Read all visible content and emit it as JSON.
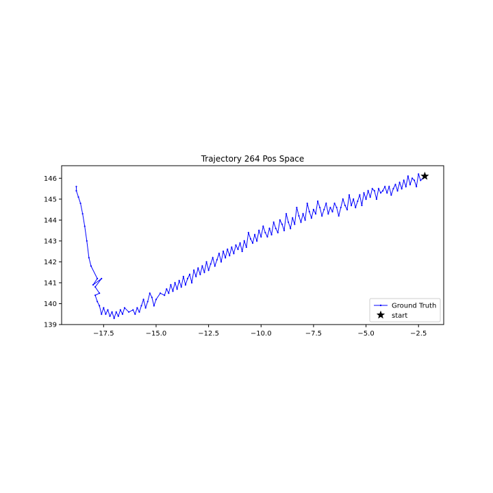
{
  "chart_data": {
    "type": "line",
    "title": "Trajectory 264 Pos Space",
    "xlabel": "",
    "ylabel": "",
    "xlim": [
      -19.5,
      -1.3
    ],
    "ylim": [
      139.0,
      146.6
    ],
    "xticks": [
      -17.5,
      -15.0,
      -12.5,
      -10.0,
      -7.5,
      -5.0,
      -2.5
    ],
    "xtick_labels": [
      "−17.5",
      "−15.0",
      "−12.5",
      "−10.0",
      "−7.5",
      "−5.0",
      "−2.5"
    ],
    "yticks": [
      139,
      140,
      141,
      142,
      143,
      144,
      145,
      146
    ],
    "ytick_labels": [
      "139",
      "140",
      "141",
      "142",
      "143",
      "144",
      "145",
      "146"
    ],
    "grid": false,
    "legend_position": "lower-right",
    "series": [
      {
        "name": "Ground Truth",
        "color": "#0000ff",
        "marker": "point",
        "points": [
          [
            -2.2,
            146.1
          ],
          [
            -2.4,
            145.9
          ],
          [
            -2.5,
            146.2
          ],
          [
            -2.6,
            145.6
          ],
          [
            -2.7,
            145.9
          ],
          [
            -2.8,
            146.0
          ],
          [
            -2.9,
            145.7
          ],
          [
            -3.0,
            146.1
          ],
          [
            -3.1,
            145.6
          ],
          [
            -3.2,
            145.9
          ],
          [
            -3.3,
            145.5
          ],
          [
            -3.4,
            145.8
          ],
          [
            -3.5,
            145.4
          ],
          [
            -3.6,
            145.7
          ],
          [
            -3.7,
            145.5
          ],
          [
            -3.8,
            145.2
          ],
          [
            -3.9,
            145.6
          ],
          [
            -4.0,
            145.3
          ],
          [
            -4.1,
            145.6
          ],
          [
            -4.2,
            145.4
          ],
          [
            -4.3,
            145.3
          ],
          [
            -4.4,
            145.5
          ],
          [
            -4.5,
            145.0
          ],
          [
            -4.6,
            145.4
          ],
          [
            -4.7,
            145.5
          ],
          [
            -4.8,
            145.1
          ],
          [
            -4.9,
            145.4
          ],
          [
            -5.0,
            145.0
          ],
          [
            -5.1,
            145.3
          ],
          [
            -5.2,
            144.7
          ],
          [
            -5.3,
            145.2
          ],
          [
            -5.4,
            144.9
          ],
          [
            -5.5,
            144.6
          ],
          [
            -5.6,
            145.0
          ],
          [
            -5.7,
            144.7
          ],
          [
            -5.8,
            145.2
          ],
          [
            -5.9,
            144.5
          ],
          [
            -6.0,
            144.7
          ],
          [
            -6.1,
            145.0
          ],
          [
            -6.2,
            144.6
          ],
          [
            -6.3,
            144.2
          ],
          [
            -6.4,
            144.6
          ],
          [
            -6.5,
            144.8
          ],
          [
            -6.6,
            144.4
          ],
          [
            -6.7,
            144.6
          ],
          [
            -6.8,
            144.3
          ],
          [
            -6.9,
            144.8
          ],
          [
            -7.0,
            144.5
          ],
          [
            -7.1,
            144.2
          ],
          [
            -7.2,
            144.6
          ],
          [
            -7.3,
            144.9
          ],
          [
            -7.4,
            144.3
          ],
          [
            -7.5,
            144.5
          ],
          [
            -7.6,
            144.1
          ],
          [
            -7.7,
            144.4
          ],
          [
            -7.8,
            144.8
          ],
          [
            -7.9,
            144.0
          ],
          [
            -8.0,
            144.3
          ],
          [
            -8.1,
            143.9
          ],
          [
            -8.2,
            144.2
          ],
          [
            -8.3,
            144.6
          ],
          [
            -8.4,
            143.8
          ],
          [
            -8.5,
            144.1
          ],
          [
            -8.6,
            143.6
          ],
          [
            -8.7,
            143.9
          ],
          [
            -8.8,
            144.3
          ],
          [
            -8.9,
            143.5
          ],
          [
            -9.0,
            143.8
          ],
          [
            -9.1,
            144.0
          ],
          [
            -9.2,
            143.4
          ],
          [
            -9.3,
            143.6
          ],
          [
            -9.4,
            143.9
          ],
          [
            -9.5,
            143.3
          ],
          [
            -9.6,
            143.6
          ],
          [
            -9.7,
            143.2
          ],
          [
            -9.8,
            143.4
          ],
          [
            -9.9,
            143.7
          ],
          [
            -10.0,
            143.2
          ],
          [
            -10.1,
            143.5
          ],
          [
            -10.2,
            143.0
          ],
          [
            -10.3,
            143.3
          ],
          [
            -10.4,
            142.9
          ],
          [
            -10.5,
            143.1
          ],
          [
            -10.6,
            143.4
          ],
          [
            -10.7,
            142.7
          ],
          [
            -10.8,
            143.0
          ],
          [
            -10.9,
            142.5
          ],
          [
            -11.0,
            142.9
          ],
          [
            -11.1,
            142.6
          ],
          [
            -11.2,
            142.8
          ],
          [
            -11.3,
            142.4
          ],
          [
            -11.4,
            142.7
          ],
          [
            -11.5,
            142.3
          ],
          [
            -11.6,
            142.6
          ],
          [
            -11.7,
            142.2
          ],
          [
            -11.8,
            142.5
          ],
          [
            -11.9,
            142.0
          ],
          [
            -12.0,
            142.4
          ],
          [
            -12.1,
            142.1
          ],
          [
            -12.2,
            141.8
          ],
          [
            -12.3,
            142.2
          ],
          [
            -12.4,
            141.9
          ],
          [
            -12.5,
            141.6
          ],
          [
            -12.6,
            142.0
          ],
          [
            -12.7,
            141.5
          ],
          [
            -12.8,
            141.8
          ],
          [
            -12.9,
            141.4
          ],
          [
            -13.0,
            141.7
          ],
          [
            -13.1,
            141.3
          ],
          [
            -13.2,
            141.6
          ],
          [
            -13.3,
            141.0
          ],
          [
            -13.4,
            141.4
          ],
          [
            -13.5,
            141.2
          ],
          [
            -13.6,
            140.9
          ],
          [
            -13.7,
            141.3
          ],
          [
            -13.8,
            140.8
          ],
          [
            -13.9,
            141.1
          ],
          [
            -14.0,
            140.7
          ],
          [
            -14.1,
            141.0
          ],
          [
            -14.2,
            140.6
          ],
          [
            -14.3,
            140.9
          ],
          [
            -14.4,
            140.5
          ],
          [
            -14.5,
            140.7
          ],
          [
            -14.6,
            140.4
          ],
          [
            -14.8,
            140.5
          ],
          [
            -15.0,
            140.2
          ],
          [
            -15.1,
            139.9
          ],
          [
            -15.2,
            140.3
          ],
          [
            -15.3,
            140.5
          ],
          [
            -15.4,
            140.1
          ],
          [
            -15.5,
            139.8
          ],
          [
            -15.6,
            140.2
          ],
          [
            -15.7,
            139.9
          ],
          [
            -15.8,
            139.6
          ],
          [
            -15.9,
            139.8
          ],
          [
            -16.0,
            139.5
          ],
          [
            -16.1,
            139.7
          ],
          [
            -16.3,
            139.6
          ],
          [
            -16.5,
            139.8
          ],
          [
            -16.6,
            139.5
          ],
          [
            -16.7,
            139.7
          ],
          [
            -16.8,
            139.4
          ],
          [
            -16.9,
            139.6
          ],
          [
            -17.0,
            139.3
          ],
          [
            -17.1,
            139.6
          ],
          [
            -17.2,
            139.4
          ],
          [
            -17.3,
            139.7
          ],
          [
            -17.4,
            139.5
          ],
          [
            -17.5,
            139.8
          ],
          [
            -17.6,
            139.5
          ],
          [
            -17.7,
            139.9
          ],
          [
            -17.8,
            140.1
          ],
          [
            -17.9,
            140.4
          ],
          [
            -17.7,
            140.5
          ],
          [
            -17.9,
            140.8
          ],
          [
            -17.6,
            141.2
          ],
          [
            -18.0,
            140.9
          ],
          [
            -17.8,
            141.2
          ],
          [
            -18.1,
            141.8
          ],
          [
            -18.2,
            142.2
          ],
          [
            -18.3,
            143.0
          ],
          [
            -18.4,
            143.7
          ],
          [
            -18.5,
            144.3
          ],
          [
            -18.6,
            144.8
          ],
          [
            -18.7,
            145.1
          ],
          [
            -18.8,
            145.4
          ],
          [
            -18.8,
            145.6
          ]
        ]
      }
    ],
    "start_point": {
      "name": "start",
      "x": -2.2,
      "y": 146.1,
      "marker": "star",
      "color": "#000000"
    }
  }
}
